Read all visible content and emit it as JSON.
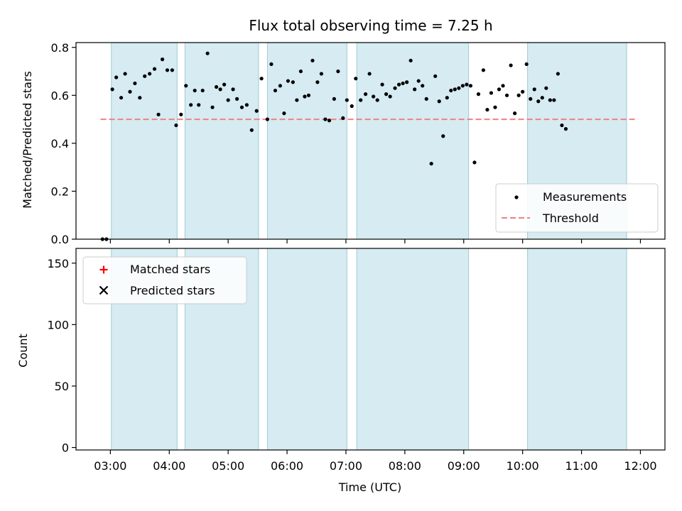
{
  "chart_data": [
    {
      "type": "scatter",
      "title": "Flux total observing time = 7.25 h",
      "ylabel": "Matched/Predicted stars",
      "xlabel": "",
      "xlim": [
        "02:25",
        "12:25"
      ],
      "ylim": [
        0,
        0.82
      ],
      "yticks": [
        "0.0",
        "0.2",
        "0.4",
        "0.6",
        "0.8"
      ],
      "xticks": [
        "03:00",
        "04:00",
        "05:00",
        "06:00",
        "07:00",
        "08:00",
        "09:00",
        "10:00",
        "11:00",
        "12:00"
      ],
      "threshold": {
        "name": "Threshold",
        "value": 0.5,
        "x_range": [
          "02:50",
          "11:55"
        ],
        "color": "#f08080"
      },
      "shaded_intervals": [
        [
          "03:01",
          "04:08"
        ],
        [
          "04:16",
          "05:31"
        ],
        [
          "05:40",
          "07:01"
        ],
        [
          "07:11",
          "09:05"
        ],
        [
          "10:05",
          "11:46"
        ]
      ],
      "legend": {
        "position": "lower-right",
        "entries": [
          "Measurements",
          "Threshold"
        ]
      },
      "series": [
        {
          "name": "Measurements",
          "color": "#000000",
          "points": [
            [
              "02:52",
              0.0
            ],
            [
              "02:56",
              0.0
            ],
            [
              "03:02",
              0.625
            ],
            [
              "03:06",
              0.675
            ],
            [
              "03:11",
              0.59
            ],
            [
              "03:15",
              0.69
            ],
            [
              "03:20",
              0.615
            ],
            [
              "03:25",
              0.65
            ],
            [
              "03:30",
              0.59
            ],
            [
              "03:35",
              0.68
            ],
            [
              "03:40",
              0.69
            ],
            [
              "03:45",
              0.71
            ],
            [
              "03:49",
              0.52
            ],
            [
              "03:53",
              0.75
            ],
            [
              "03:58",
              0.705
            ],
            [
              "04:03",
              0.705
            ],
            [
              "04:07",
              0.475
            ],
            [
              "04:12",
              0.52
            ],
            [
              "04:17",
              0.64
            ],
            [
              "04:22",
              0.56
            ],
            [
              "04:26",
              0.62
            ],
            [
              "04:30",
              0.56
            ],
            [
              "04:34",
              0.62
            ],
            [
              "04:39",
              0.775
            ],
            [
              "04:44",
              0.55
            ],
            [
              "04:48",
              0.635
            ],
            [
              "04:52",
              0.625
            ],
            [
              "04:56",
              0.645
            ],
            [
              "05:00",
              0.58
            ],
            [
              "05:05",
              0.625
            ],
            [
              "05:09",
              0.585
            ],
            [
              "05:14",
              0.55
            ],
            [
              "05:19",
              0.56
            ],
            [
              "05:24",
              0.455
            ],
            [
              "05:29",
              0.535
            ],
            [
              "05:34",
              0.67
            ],
            [
              "05:40",
              0.5
            ],
            [
              "05:44",
              0.73
            ],
            [
              "05:48",
              0.62
            ],
            [
              "05:53",
              0.64
            ],
            [
              "05:57",
              0.525
            ],
            [
              "06:01",
              0.66
            ],
            [
              "06:06",
              0.655
            ],
            [
              "06:10",
              0.58
            ],
            [
              "06:14",
              0.7
            ],
            [
              "06:18",
              0.595
            ],
            [
              "06:22",
              0.6
            ],
            [
              "06:26",
              0.745
            ],
            [
              "06:31",
              0.655
            ],
            [
              "06:35",
              0.69
            ],
            [
              "06:39",
              0.5
            ],
            [
              "06:43",
              0.495
            ],
            [
              "06:48",
              0.585
            ],
            [
              "06:52",
              0.7
            ],
            [
              "06:57",
              0.505
            ],
            [
              "07:01",
              0.58
            ],
            [
              "07:06",
              0.555
            ],
            [
              "07:10",
              0.67
            ],
            [
              "07:15",
              0.58
            ],
            [
              "07:20",
              0.605
            ],
            [
              "07:24",
              0.69
            ],
            [
              "07:28",
              0.595
            ],
            [
              "07:32",
              0.58
            ],
            [
              "07:37",
              0.645
            ],
            [
              "07:41",
              0.605
            ],
            [
              "07:45",
              0.595
            ],
            [
              "07:50",
              0.63
            ],
            [
              "07:54",
              0.645
            ],
            [
              "07:58",
              0.65
            ],
            [
              "08:02",
              0.655
            ],
            [
              "08:06",
              0.745
            ],
            [
              "08:10",
              0.625
            ],
            [
              "08:14",
              0.66
            ],
            [
              "08:18",
              0.64
            ],
            [
              "08:22",
              0.585
            ],
            [
              "08:27",
              0.315
            ],
            [
              "08:31",
              0.68
            ],
            [
              "08:35",
              0.575
            ],
            [
              "08:39",
              0.43
            ],
            [
              "08:43",
              0.59
            ],
            [
              "08:47",
              0.62
            ],
            [
              "08:51",
              0.625
            ],
            [
              "08:55",
              0.63
            ],
            [
              "08:59",
              0.64
            ],
            [
              "09:03",
              0.645
            ],
            [
              "09:07",
              0.64
            ],
            [
              "09:11",
              0.32
            ],
            [
              "09:15",
              0.605
            ],
            [
              "09:20",
              0.705
            ],
            [
              "09:24",
              0.54
            ],
            [
              "09:28",
              0.61
            ],
            [
              "09:32",
              0.55
            ],
            [
              "09:36",
              0.625
            ],
            [
              "09:40",
              0.64
            ],
            [
              "09:44",
              0.6
            ],
            [
              "09:48",
              0.725
            ],
            [
              "09:52",
              0.525
            ],
            [
              "09:56",
              0.6
            ],
            [
              "10:00",
              0.615
            ],
            [
              "10:04",
              0.73
            ],
            [
              "10:08",
              0.585
            ],
            [
              "10:12",
              0.625
            ],
            [
              "10:16",
              0.575
            ],
            [
              "10:20",
              0.59
            ],
            [
              "10:24",
              0.63
            ],
            [
              "10:28",
              0.58
            ],
            [
              "10:32",
              0.58
            ],
            [
              "10:36",
              0.69
            ],
            [
              "10:40",
              0.475
            ],
            [
              "10:44",
              0.46
            ]
          ]
        }
      ]
    },
    {
      "type": "scatter",
      "title": "",
      "xlabel": "Time (UTC)",
      "ylabel": "Count",
      "xlim": [
        "02:25",
        "12:25"
      ],
      "ylim": [
        -2,
        162
      ],
      "yticks": [
        "0",
        "50",
        "100",
        "150"
      ],
      "xticks": [
        "03:00",
        "04:00",
        "05:00",
        "06:00",
        "07:00",
        "08:00",
        "09:00",
        "10:00",
        "11:00",
        "12:00"
      ],
      "shaded_intervals": [
        [
          "03:01",
          "04:08"
        ],
        [
          "04:16",
          "05:31"
        ],
        [
          "05:40",
          "07:01"
        ],
        [
          "07:11",
          "09:05"
        ],
        [
          "10:05",
          "11:46"
        ]
      ],
      "legend": {
        "position": "top-left",
        "entries": [
          "Matched stars",
          "Predicted stars"
        ]
      },
      "series": [
        {
          "name": "Matched stars",
          "color": "#ff0000",
          "marker": "plus",
          "points": []
        },
        {
          "name": "Predicted stars",
          "color": "#000000",
          "marker": "x",
          "points": []
        }
      ]
    }
  ]
}
